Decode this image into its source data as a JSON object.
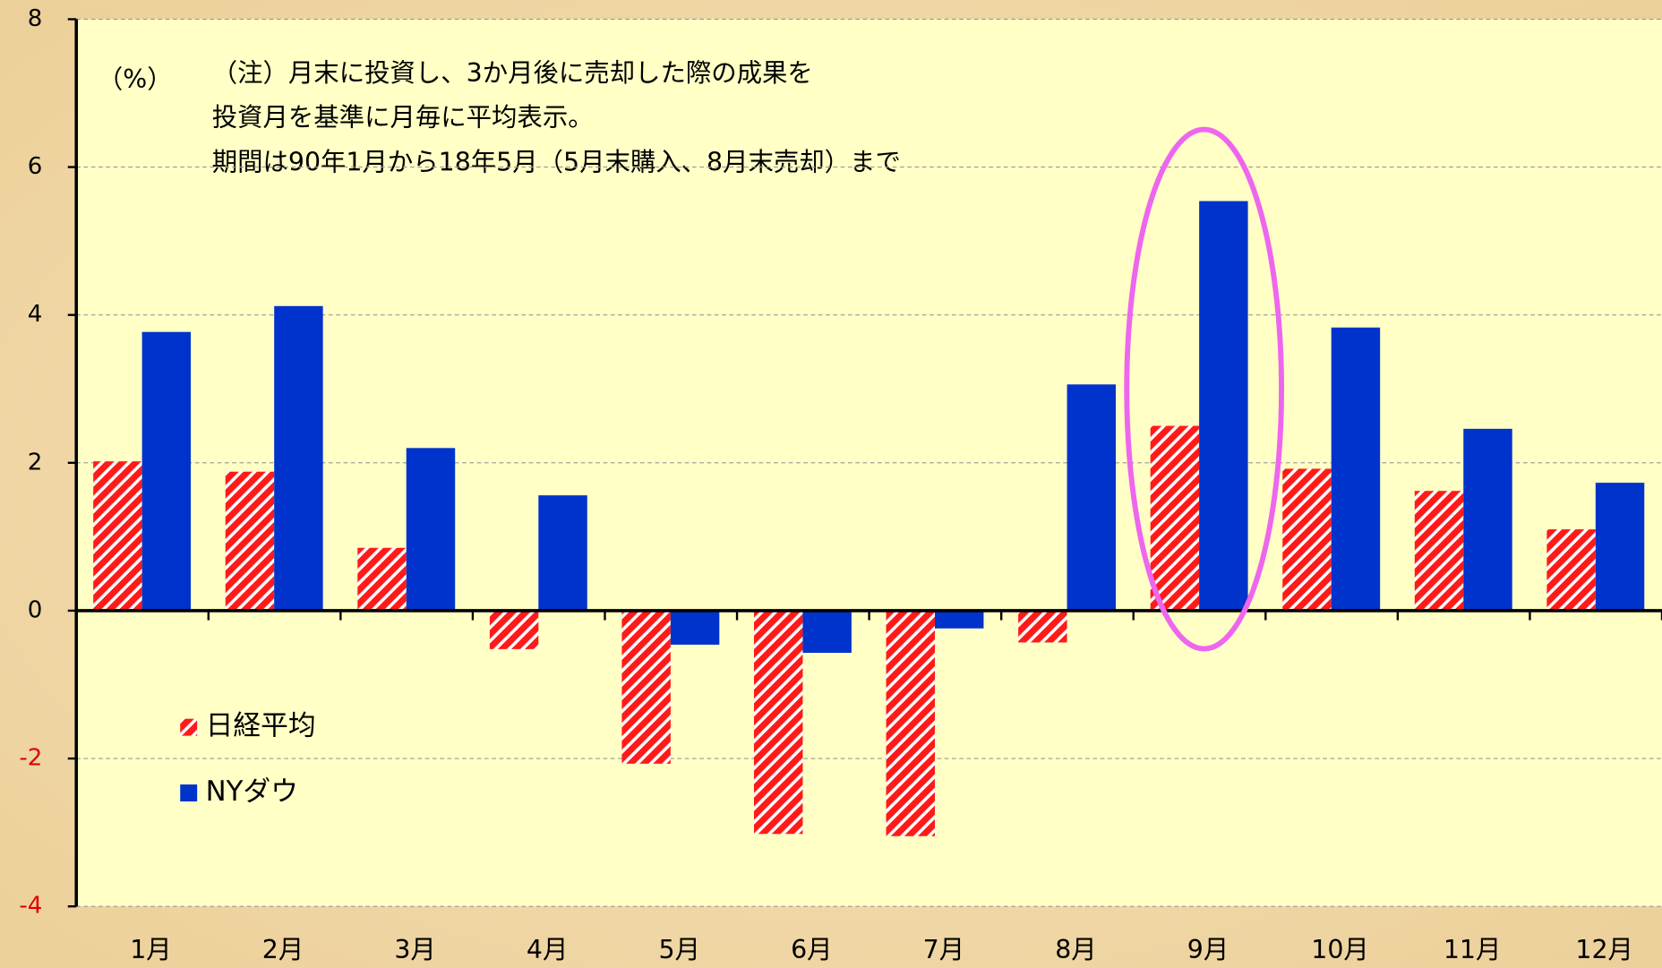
{
  "chart_data": {
    "type": "bar",
    "unit_label": "（%）",
    "annotations": [
      "（注）月末に投資し、3か月後に売却した際の成果を",
      "投資月を基準に月毎に平均表示。",
      "期間は90年1月から18年5月（5月末購入、8月末売却）まで"
    ],
    "categories": [
      "1月",
      "2月",
      "3月",
      "4月",
      "5月",
      "6月",
      "7月",
      "8月",
      "9月",
      "10月",
      "11月",
      "12月"
    ],
    "series": [
      {
        "name": "日経平均",
        "color": "#ff1a1a",
        "values": [
          2.02,
          1.88,
          0.85,
          -0.52,
          -2.07,
          -3.02,
          -3.05,
          -0.43,
          2.5,
          1.92,
          1.62,
          1.1
        ]
      },
      {
        "name": "NYダウ",
        "color": "#0033cc",
        "values": [
          3.77,
          4.12,
          2.2,
          1.56,
          -0.46,
          -0.57,
          -0.24,
          3.06,
          5.54,
          3.83,
          2.46,
          1.73
        ]
      }
    ],
    "ylim": [
      -4,
      8
    ],
    "yticks": [
      -4,
      -2,
      0,
      2,
      4,
      6,
      8
    ],
    "grid": true
  }
}
